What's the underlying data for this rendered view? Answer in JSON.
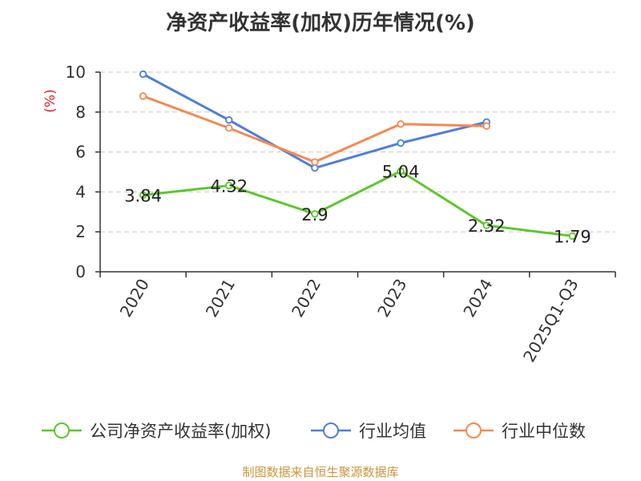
{
  "chart_data": {
    "type": "line",
    "title": "净资产收益率(加权)历年情况(%)",
    "ylabel": "(%)",
    "xlabel": "",
    "categories": [
      "2020",
      "2021",
      "2022",
      "2023",
      "2024",
      "2025Q1-Q3"
    ],
    "ylim": [
      0,
      10
    ],
    "yticks": [
      0,
      2,
      4,
      6,
      8,
      10
    ],
    "grid": true,
    "legend_position": "bottom",
    "series": [
      {
        "name": "公司净资产收益率(加权)",
        "color": "#5cc72a",
        "values": [
          3.84,
          4.32,
          2.9,
          5.04,
          2.32,
          1.79
        ],
        "labels": [
          "3.84",
          "4.32",
          "2.9",
          "5.04",
          "2.32",
          "1.79"
        ]
      },
      {
        "name": "行业均值",
        "color": "#4e7fdb",
        "values": [
          9.9,
          7.6,
          5.2,
          6.45,
          7.5,
          null
        ]
      },
      {
        "name": "行业中位数",
        "color": "#f5894f",
        "values": [
          8.8,
          7.2,
          5.5,
          7.4,
          7.3,
          null
        ]
      }
    ]
  },
  "source_note": "制图数据来自恒生聚源数据库"
}
